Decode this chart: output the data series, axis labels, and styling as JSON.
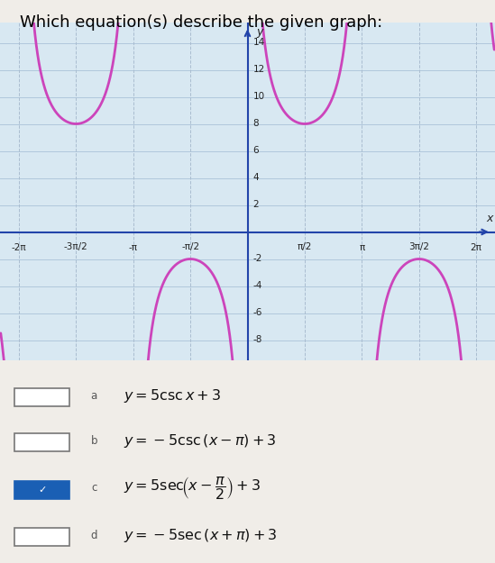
{
  "title": "Which equation(s) describe the given graph:",
  "title_fontsize": 13,
  "title_color": "#000000",
  "graph_bg_color": "#d8e8f2",
  "grid_color_h": "#b0c8dc",
  "grid_color_v": "#aabdd0",
  "curve_color": "#cc44bb",
  "curve_linewidth": 2.0,
  "axis_color": "#2244aa",
  "tick_label_color": "#222222",
  "tick_label_fontsize": 7.5,
  "xlim": [
    -6.8,
    6.8
  ],
  "ylim": [
    -9.5,
    15.5
  ],
  "pi": 3.14159265358979,
  "xtick_positions": [
    -6.283185307,
    -4.71238898,
    -3.14159265,
    -1.5707963,
    1.5707963,
    3.14159265,
    4.71238898,
    6.283185307
  ],
  "xtick_labels": [
    "-2π",
    "-3π/2",
    "-π",
    "-π/2",
    "π/2",
    "π",
    "3π/2",
    "2π"
  ],
  "ytick_positions": [
    -8,
    -6,
    -4,
    -2,
    2,
    4,
    6,
    8,
    10,
    12,
    14
  ],
  "ytick_labels": [
    "-8",
    "-6",
    "-4",
    "-2",
    "2",
    "4",
    "6",
    "8",
    "10",
    "12",
    "14"
  ],
  "ylabel": "y",
  "xlabel": "x",
  "clip_y_max": 15.0,
  "clip_y_min": -9.0,
  "choices_bg": "#f0ede8",
  "choices": [
    {
      "label": "a",
      "checked": false,
      "parts": [
        {
          "text": "y",
          "style": "italic"
        },
        {
          "text": " = 5csc ",
          "style": "normal"
        },
        {
          "text": "x",
          "style": "italic"
        },
        {
          "text": " + 3",
          "style": "normal"
        }
      ]
    },
    {
      "label": "b",
      "checked": false,
      "parts": [
        {
          "text": "y",
          "style": "italic"
        },
        {
          "text": " = −5csc (",
          "style": "normal"
        },
        {
          "text": "x",
          "style": "italic"
        },
        {
          "text": " − π) + 3",
          "style": "normal"
        }
      ]
    },
    {
      "label": "c",
      "checked": true,
      "parts": [
        {
          "text": "y",
          "style": "italic"
        },
        {
          "text": " = 5sec (",
          "style": "normal"
        },
        {
          "text": "x",
          "style": "italic"
        },
        {
          "text": " − π/2) + 3",
          "style": "normal"
        }
      ]
    },
    {
      "label": "d",
      "checked": false,
      "parts": [
        {
          "text": "y",
          "style": "italic"
        },
        {
          "text": " = −5sec (",
          "style": "normal"
        },
        {
          "text": "x",
          "style": "italic"
        },
        {
          "text": " + π) + 3",
          "style": "normal"
        }
      ]
    }
  ]
}
